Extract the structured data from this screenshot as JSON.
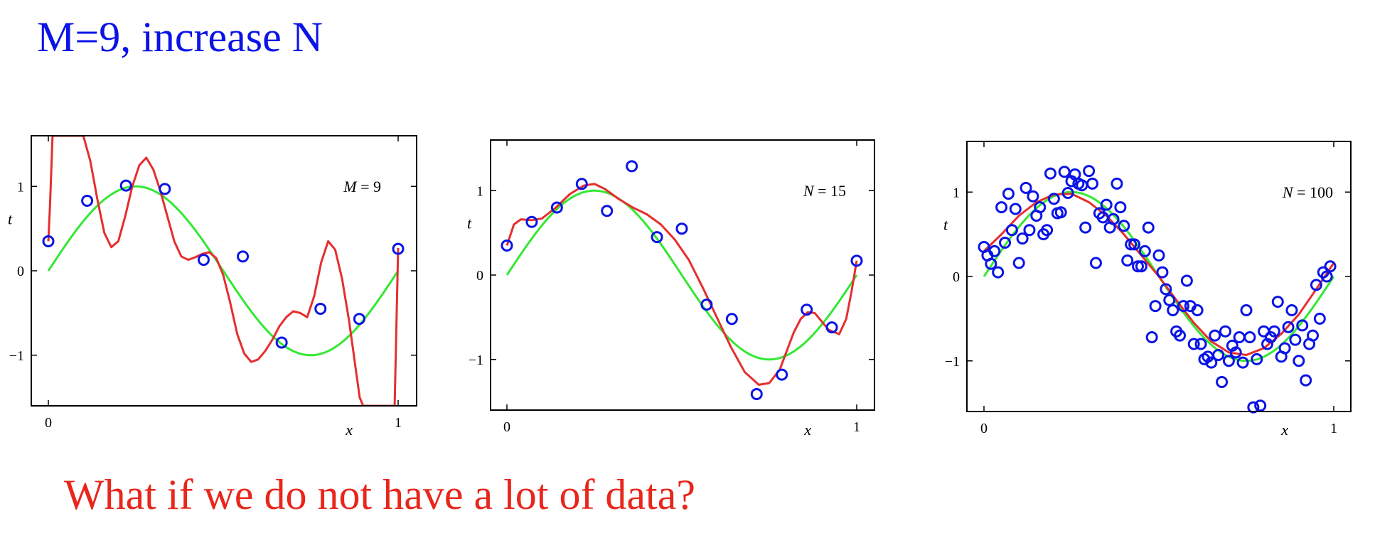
{
  "slide": {
    "title": "M=9, increase N",
    "question": "What if we do not have a lot of data?"
  },
  "colors": {
    "title": "#0a14e6",
    "question": "#e8261c",
    "true_curve": "#33e833",
    "fit_curve": "#e62e2e",
    "points": "#0a14e6"
  },
  "chart_data": [
    {
      "type": "line",
      "xlabel": "x",
      "ylabel": "t",
      "xlim": [
        0,
        1
      ],
      "ylim": [
        -1.6,
        1.6
      ],
      "x_ticks": [
        "0",
        "1"
      ],
      "y_ticks": [
        "−1",
        "0",
        "1"
      ],
      "annotation": {
        "var": "M",
        "text": " = 9"
      },
      "series": [
        {
          "kind": "true",
          "function": "sin(2*pi*x)"
        },
        {
          "kind": "fit",
          "x": [
            0.0,
            0.005,
            0.012,
            0.02,
            0.035,
            0.06,
            0.08,
            0.1,
            0.12,
            0.14,
            0.16,
            0.18,
            0.2,
            0.22,
            0.24,
            0.26,
            0.28,
            0.3,
            0.32,
            0.34,
            0.36,
            0.38,
            0.4,
            0.42,
            0.44,
            0.46,
            0.48,
            0.5,
            0.52,
            0.54,
            0.56,
            0.58,
            0.6,
            0.62,
            0.64,
            0.66,
            0.68,
            0.7,
            0.72,
            0.74,
            0.76,
            0.78,
            0.8,
            0.82,
            0.84,
            0.86,
            0.87,
            0.88,
            0.89,
            0.9,
            0.91,
            0.92,
            0.93,
            0.94,
            0.95,
            0.96,
            0.97,
            0.98,
            0.99,
            1.0
          ],
          "y": [
            0.35,
            0.8,
            1.6,
            1.6,
            1.6,
            1.6,
            1.6,
            1.6,
            1.3,
            0.85,
            0.45,
            0.28,
            0.35,
            0.65,
            1.0,
            1.25,
            1.34,
            1.2,
            0.95,
            0.65,
            0.35,
            0.17,
            0.13,
            0.16,
            0.2,
            0.22,
            0.15,
            -0.05,
            -0.38,
            -0.75,
            -0.98,
            -1.08,
            -1.05,
            -0.95,
            -0.82,
            -0.66,
            -0.55,
            -0.48,
            -0.5,
            -0.55,
            -0.3,
            0.1,
            0.35,
            0.25,
            -0.1,
            -0.6,
            -0.9,
            -1.2,
            -1.5,
            -1.6,
            -1.6,
            -1.6,
            -1.6,
            -1.6,
            -1.6,
            -1.6,
            -1.6,
            -1.6,
            -1.6,
            0.27
          ]
        },
        {
          "kind": "points",
          "x": [
            0.0,
            0.111,
            0.222,
            0.333,
            0.444,
            0.556,
            0.667,
            0.778,
            0.889,
            1.0
          ],
          "y": [
            0.35,
            0.83,
            1.01,
            0.97,
            0.13,
            0.17,
            -0.85,
            -0.45,
            -0.57,
            0.26
          ]
        }
      ]
    },
    {
      "type": "line",
      "xlabel": "x",
      "ylabel": "t",
      "xlim": [
        0,
        1
      ],
      "ylim": [
        -1.6,
        1.6
      ],
      "x_ticks": [
        "0",
        "1"
      ],
      "y_ticks": [
        "−1",
        "0",
        "1"
      ],
      "annotation": {
        "var": "N",
        "text": " = 15"
      },
      "series": [
        {
          "kind": "true",
          "function": "sin(2*pi*x)"
        },
        {
          "kind": "fit",
          "x": [
            0.0,
            0.02,
            0.04,
            0.07,
            0.1,
            0.14,
            0.18,
            0.22,
            0.25,
            0.28,
            0.32,
            0.36,
            0.4,
            0.44,
            0.48,
            0.52,
            0.56,
            0.6,
            0.64,
            0.68,
            0.72,
            0.75,
            0.78,
            0.8,
            0.82,
            0.84,
            0.86,
            0.88,
            0.9,
            0.92,
            0.95,
            0.97,
            0.985,
            1.0
          ],
          "y": [
            0.35,
            0.6,
            0.66,
            0.65,
            0.67,
            0.8,
            0.96,
            1.06,
            1.08,
            1.02,
            0.9,
            0.8,
            0.72,
            0.6,
            0.42,
            0.18,
            -0.15,
            -0.5,
            -0.85,
            -1.15,
            -1.3,
            -1.28,
            -1.12,
            -0.9,
            -0.68,
            -0.52,
            -0.44,
            -0.45,
            -0.55,
            -0.65,
            -0.7,
            -0.52,
            -0.2,
            0.17
          ]
        },
        {
          "kind": "points",
          "x": [
            0.0,
            0.071,
            0.143,
            0.214,
            0.286,
            0.357,
            0.429,
            0.5,
            0.571,
            0.643,
            0.714,
            0.786,
            0.857,
            0.929,
            1.0
          ],
          "y": [
            0.35,
            0.63,
            0.8,
            1.08,
            0.76,
            1.29,
            0.45,
            0.55,
            -0.35,
            -0.52,
            -1.41,
            -1.18,
            -0.41,
            -0.62,
            0.17
          ]
        }
      ]
    },
    {
      "type": "line",
      "xlabel": "x",
      "ylabel": "t",
      "xlim": [
        0,
        1
      ],
      "ylim": [
        -1.6,
        1.6
      ],
      "x_ticks": [
        "0",
        "1"
      ],
      "y_ticks": [
        "−1",
        "0",
        "1"
      ],
      "annotation": {
        "var": "N",
        "text": " = 100"
      },
      "series": [
        {
          "kind": "true",
          "function": "sin(2*pi*x)"
        },
        {
          "kind": "fit",
          "x": [
            0.0,
            0.05,
            0.1,
            0.15,
            0.2,
            0.25,
            0.3,
            0.35,
            0.4,
            0.45,
            0.5,
            0.55,
            0.6,
            0.65,
            0.7,
            0.75,
            0.8,
            0.85,
            0.9,
            0.95,
            1.0
          ],
          "y": [
            0.3,
            0.5,
            0.72,
            0.88,
            0.97,
            0.98,
            0.88,
            0.72,
            0.5,
            0.25,
            0.0,
            -0.28,
            -0.55,
            -0.77,
            -0.9,
            -0.93,
            -0.85,
            -0.68,
            -0.45,
            -0.15,
            0.16
          ]
        },
        {
          "kind": "points",
          "x": [
            0.0,
            0.01,
            0.02,
            0.03,
            0.04,
            0.05,
            0.06,
            0.07,
            0.08,
            0.09,
            0.1,
            0.11,
            0.12,
            0.13,
            0.14,
            0.15,
            0.16,
            0.17,
            0.18,
            0.19,
            0.2,
            0.21,
            0.22,
            0.23,
            0.24,
            0.25,
            0.26,
            0.27,
            0.28,
            0.29,
            0.3,
            0.31,
            0.32,
            0.33,
            0.34,
            0.35,
            0.36,
            0.37,
            0.38,
            0.39,
            0.4,
            0.41,
            0.42,
            0.43,
            0.44,
            0.45,
            0.46,
            0.47,
            0.48,
            0.49,
            0.5,
            0.51,
            0.52,
            0.53,
            0.54,
            0.55,
            0.56,
            0.57,
            0.58,
            0.59,
            0.6,
            0.61,
            0.62,
            0.63,
            0.64,
            0.65,
            0.66,
            0.67,
            0.68,
            0.69,
            0.7,
            0.71,
            0.72,
            0.73,
            0.74,
            0.75,
            0.76,
            0.77,
            0.78,
            0.79,
            0.8,
            0.81,
            0.82,
            0.83,
            0.84,
            0.85,
            0.86,
            0.87,
            0.88,
            0.89,
            0.9,
            0.91,
            0.92,
            0.93,
            0.94,
            0.95,
            0.96,
            0.97,
            0.98,
            0.99
          ],
          "y": [
            0.35,
            0.25,
            0.15,
            0.3,
            0.05,
            0.82,
            0.4,
            0.98,
            0.55,
            0.8,
            0.16,
            0.45,
            1.05,
            0.55,
            0.95,
            0.72,
            0.82,
            0.5,
            0.55,
            1.22,
            0.92,
            0.75,
            0.76,
            1.24,
            0.99,
            1.13,
            1.21,
            1.1,
            1.08,
            0.58,
            1.25,
            1.1,
            0.16,
            0.75,
            0.7,
            0.85,
            0.58,
            0.68,
            1.1,
            0.82,
            0.6,
            0.19,
            0.38,
            0.38,
            0.12,
            0.12,
            0.3,
            0.58,
            -0.72,
            -0.35,
            0.25,
            0.05,
            -0.15,
            -0.28,
            -0.4,
            -0.65,
            -0.7,
            -0.35,
            -0.05,
            -0.35,
            -0.8,
            -0.4,
            -0.8,
            -0.98,
            -0.95,
            -1.02,
            -0.7,
            -0.93,
            -1.25,
            -0.65,
            -1.0,
            -0.82,
            -0.9,
            -0.72,
            -1.02,
            -0.4,
            -0.72,
            -1.55,
            -0.98,
            -1.53,
            -0.65,
            -0.8,
            -0.72,
            -0.65,
            -0.3,
            -0.95,
            -0.85,
            -0.6,
            -0.4,
            -0.75,
            -1.0,
            -0.58,
            -1.23,
            -0.8,
            -0.7,
            -0.1,
            -0.5,
            0.05,
            0.0,
            0.12
          ]
        }
      ]
    }
  ]
}
